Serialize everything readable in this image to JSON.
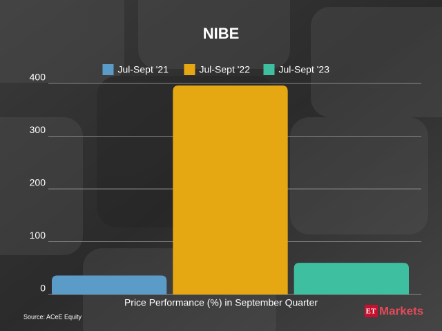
{
  "chart_data": {
    "type": "bar",
    "title": "NIBE",
    "categories": [
      null
    ],
    "series": [
      {
        "name": "Jul-Sept '21",
        "color": "#5b9bc8",
        "values": [
          36
        ]
      },
      {
        "name": "Jul-Sept '22",
        "color": "#e5a812",
        "values": [
          396
        ]
      },
      {
        "name": "Jul-Sept '23",
        "color": "#3dbfa0",
        "values": [
          60
        ]
      }
    ],
    "xlabel": "Price Performance (%) in September Quarter",
    "ylim": [
      0,
      400
    ],
    "yticks": [
      0,
      100,
      200,
      300,
      400
    ],
    "grid": true,
    "legend": "top"
  },
  "source": "Source:  ACeE Equity",
  "logo": {
    "prefix": "ET",
    "name": "Markets"
  }
}
